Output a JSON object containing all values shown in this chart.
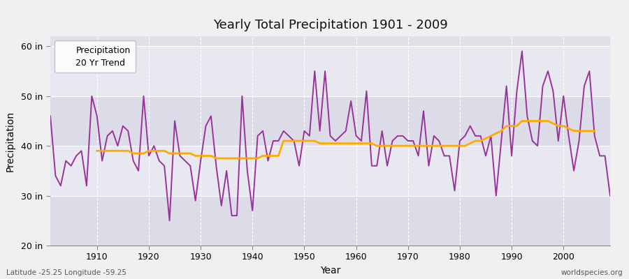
{
  "title": "Yearly Total Precipitation 1901 - 2009",
  "xlabel": "Year",
  "ylabel": "Precipitation",
  "fig_bg_color": "#f0f0f0",
  "plot_bg_color": "#e0e0e8",
  "band_colors": [
    "#dcdce8",
    "#e8e8f0"
  ],
  "precip_color": "#993399",
  "trend_color": "#ffaa00",
  "precip_label": "Precipitation",
  "trend_label": "20 Yr Trend",
  "ylim": [
    20,
    62
  ],
  "yticks": [
    20,
    30,
    40,
    50,
    60
  ],
  "ytick_labels": [
    "20 in",
    "30 in",
    "40 in",
    "50 in",
    "60 in"
  ],
  "xticks": [
    1910,
    1920,
    1930,
    1940,
    1950,
    1960,
    1970,
    1980,
    1990,
    2000
  ],
  "years": [
    1901,
    1902,
    1903,
    1904,
    1905,
    1906,
    1907,
    1908,
    1909,
    1910,
    1911,
    1912,
    1913,
    1914,
    1915,
    1916,
    1917,
    1918,
    1919,
    1920,
    1921,
    1922,
    1923,
    1924,
    1925,
    1926,
    1927,
    1928,
    1929,
    1930,
    1931,
    1932,
    1933,
    1934,
    1935,
    1936,
    1937,
    1938,
    1939,
    1940,
    1941,
    1942,
    1943,
    1944,
    1945,
    1946,
    1947,
    1948,
    1949,
    1950,
    1951,
    1952,
    1953,
    1954,
    1955,
    1956,
    1957,
    1958,
    1959,
    1960,
    1961,
    1962,
    1963,
    1964,
    1965,
    1966,
    1967,
    1968,
    1969,
    1970,
    1971,
    1972,
    1973,
    1974,
    1975,
    1976,
    1977,
    1978,
    1979,
    1980,
    1981,
    1982,
    1983,
    1984,
    1985,
    1986,
    1987,
    1988,
    1989,
    1990,
    1991,
    1992,
    1993,
    1994,
    1995,
    1996,
    1997,
    1998,
    1999,
    2000,
    2001,
    2002,
    2003,
    2004,
    2005,
    2006,
    2007,
    2008,
    2009
  ],
  "precip": [
    46,
    34,
    32,
    37,
    36,
    38,
    39,
    32,
    50,
    46,
    37,
    42,
    43,
    40,
    44,
    43,
    37,
    35,
    50,
    38,
    40,
    37,
    36,
    25,
    45,
    38,
    37,
    36,
    29,
    37,
    44,
    46,
    36,
    28,
    35,
    26,
    26,
    50,
    35,
    27,
    42,
    43,
    37,
    41,
    41,
    43,
    42,
    41,
    36,
    43,
    42,
    55,
    43,
    55,
    42,
    41,
    42,
    43,
    49,
    42,
    41,
    51,
    36,
    36,
    43,
    36,
    41,
    42,
    42,
    41,
    41,
    38,
    47,
    36,
    42,
    41,
    38,
    38,
    31,
    41,
    42,
    44,
    42,
    42,
    38,
    42,
    30,
    41,
    52,
    38,
    51,
    59,
    46,
    41,
    40,
    52,
    55,
    51,
    41,
    50,
    42,
    35,
    41,
    52,
    55,
    42,
    38,
    38,
    30
  ],
  "trend": [
    null,
    null,
    null,
    null,
    null,
    null,
    null,
    null,
    null,
    39,
    39,
    39,
    39,
    39,
    39,
    39,
    38.5,
    38.5,
    38.5,
    39,
    39,
    39,
    39,
    38.5,
    38.5,
    38.5,
    38.5,
    38.5,
    38,
    38,
    38,
    38,
    37.5,
    37.5,
    37.5,
    37.5,
    37.5,
    37.5,
    37.5,
    37.5,
    37.5,
    38,
    38,
    38,
    38,
    41,
    41,
    41,
    41,
    41,
    41,
    41,
    40.5,
    40.5,
    40.5,
    40.5,
    40.5,
    40.5,
    40.5,
    40.5,
    40.5,
    40.5,
    40.5,
    40,
    40,
    40,
    40,
    40,
    40,
    40,
    40,
    40,
    40,
    40,
    40,
    40,
    40,
    40,
    40,
    40,
    40,
    40.5,
    41,
    41,
    41.5,
    42,
    42.5,
    43,
    44,
    44,
    44,
    45,
    45,
    45,
    45,
    45,
    45,
    44.5,
    44,
    44,
    43.5,
    43,
    43,
    43,
    43,
    43,
    null,
    null,
    null
  ],
  "watermark_left": "Latitude -25.25 Longitude -59.25",
  "watermark_right": "worldspecies.org"
}
